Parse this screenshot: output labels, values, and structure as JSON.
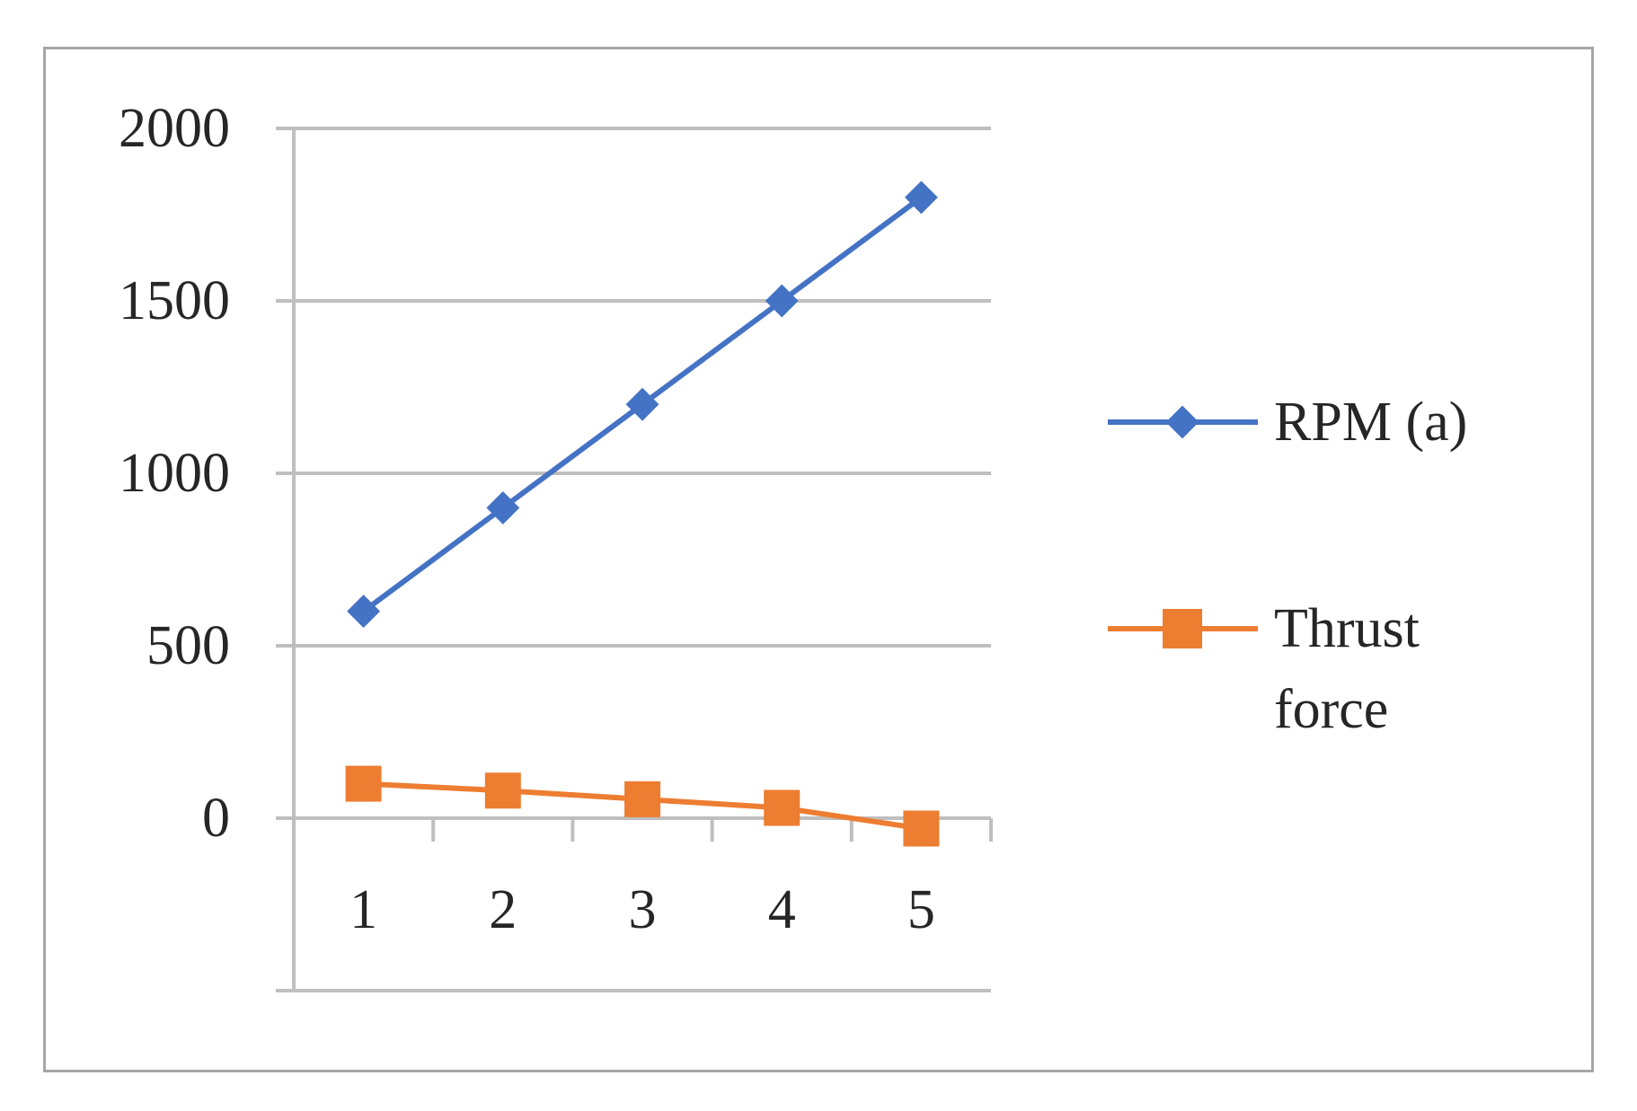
{
  "chart_data": {
    "type": "line",
    "title": "",
    "xlabel": "",
    "ylabel": "",
    "categories": [
      "1",
      "2",
      "3",
      "4",
      "5"
    ],
    "ylim": [
      -500,
      2000
    ],
    "yticks": [
      0,
      500,
      1000,
      1500,
      2000
    ],
    "yticklabels": [
      "0",
      "500",
      "1000",
      "1500",
      "2000"
    ],
    "grid": true,
    "legend_position": "right",
    "series": [
      {
        "name": "RPM (a)",
        "values": [
          600,
          900,
          1200,
          1500,
          1800
        ],
        "color": "#4472c4",
        "marker": "diamond"
      },
      {
        "name": "Thrust force",
        "legend_lines": [
          "Thrust",
          "force"
        ],
        "values": [
          100,
          80,
          55,
          30,
          -30
        ],
        "color": "#ed7d31",
        "marker": "square"
      }
    ]
  }
}
